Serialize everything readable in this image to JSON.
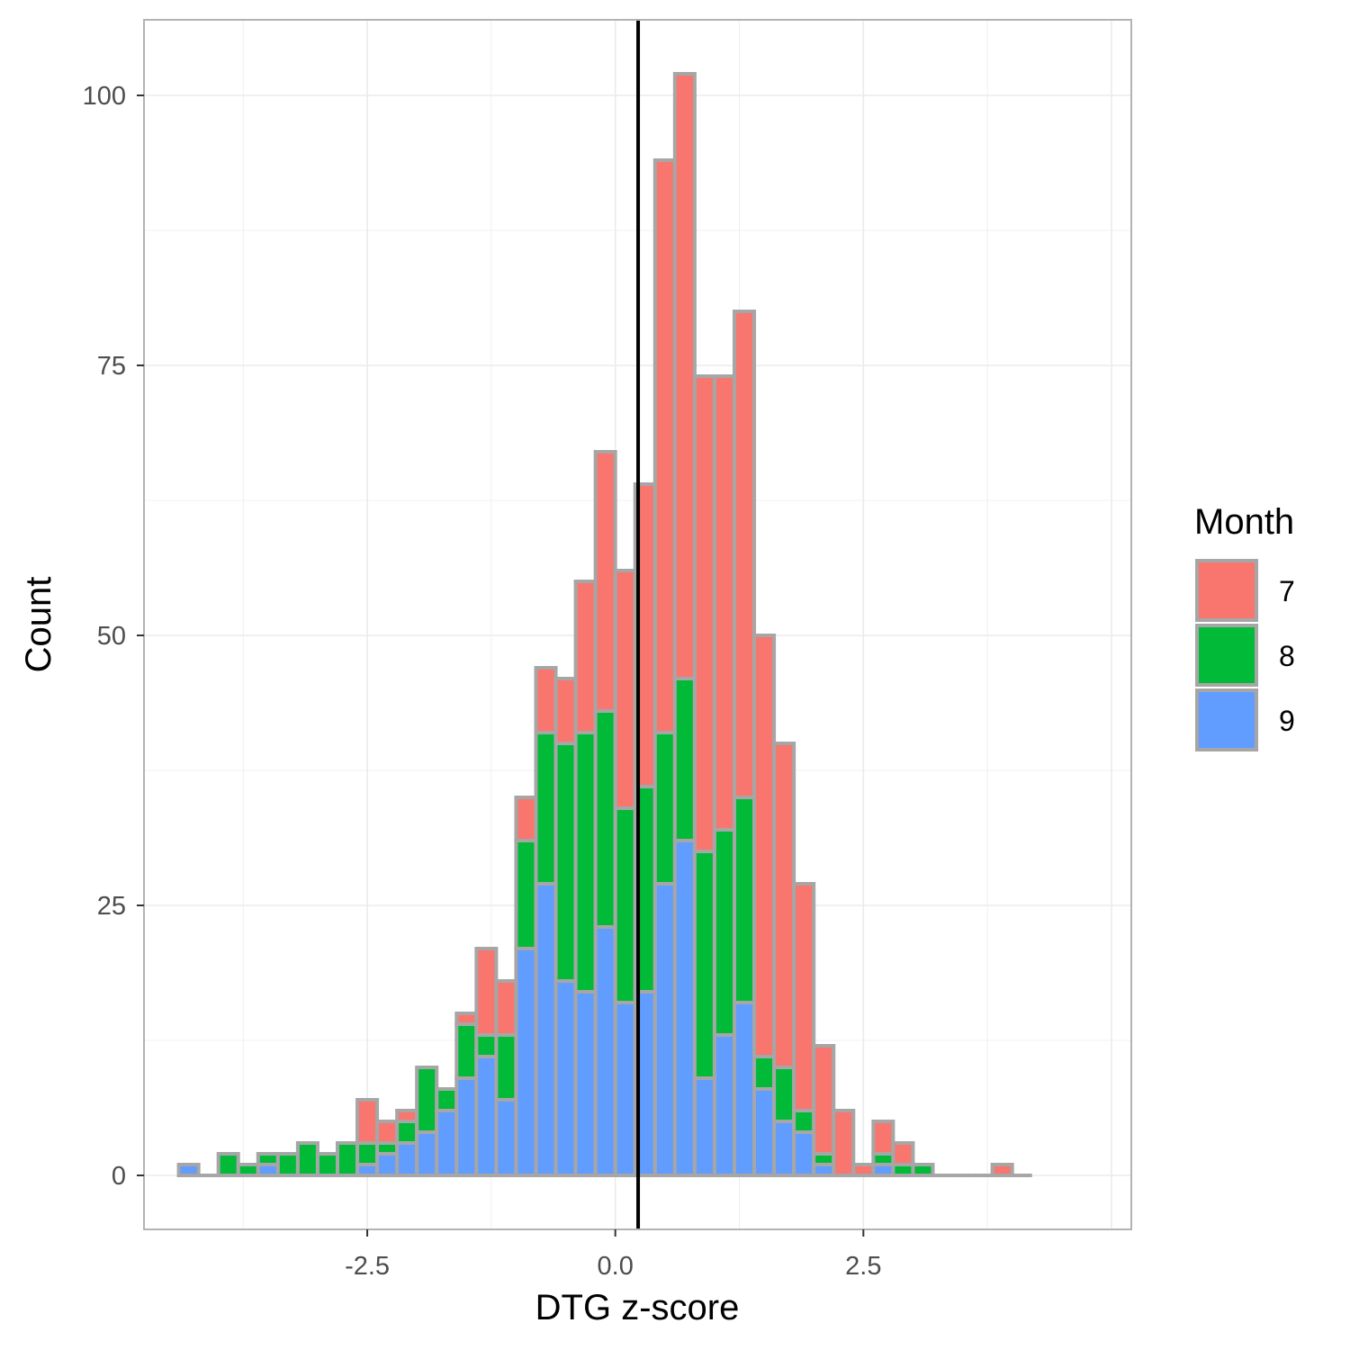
{
  "chart_data": {
    "type": "bar",
    "subtype": "stacked-histogram",
    "xlabel": "DTG z-score",
    "ylabel": "Count",
    "xlim": [
      -4.75,
      5.2
    ],
    "ylim": [
      -5,
      107
    ],
    "x_ticks": [
      -2.5,
      0.0,
      2.5
    ],
    "x_tick_labels": [
      "-2.5",
      "0.0",
      "2.5"
    ],
    "y_ticks": [
      0,
      25,
      50,
      75,
      100
    ],
    "y_tick_labels": [
      "0",
      "25",
      "50",
      "75",
      "100"
    ],
    "grid": true,
    "bin_width": 0.2,
    "bin_centers": [
      -4.3,
      -4.1,
      -3.9,
      -3.7,
      -3.5,
      -3.3,
      -3.1,
      -2.9,
      -2.7,
      -2.5,
      -2.3,
      -2.1,
      -1.9,
      -1.7,
      -1.5,
      -1.3,
      -1.1,
      -0.9,
      -0.7,
      -0.5,
      -0.3,
      -0.1,
      0.1,
      0.3,
      0.5,
      0.7,
      0.9,
      1.1,
      1.3,
      1.5,
      1.7,
      1.9,
      2.1,
      2.3,
      2.5,
      2.7,
      2.9,
      3.1,
      3.3,
      3.5,
      3.7,
      3.9,
      4.1
    ],
    "vline_x": 0.23,
    "legend_title": "Month",
    "legend_position": "right",
    "series": [
      {
        "name": "7",
        "color": "#F8766D",
        "values": [
          0,
          0,
          0,
          0,
          0,
          0,
          0,
          0,
          0,
          4,
          2,
          1,
          0,
          0,
          1,
          8,
          5,
          4,
          6,
          6,
          14,
          24,
          22,
          28,
          53,
          56,
          44,
          42,
          45,
          39,
          30,
          21,
          10,
          6,
          1,
          3,
          2,
          0,
          0,
          0,
          0,
          1,
          0
        ]
      },
      {
        "name": "8",
        "color": "#00BA38",
        "values": [
          0,
          0,
          2,
          1,
          1,
          2,
          3,
          2,
          3,
          2,
          1,
          2,
          6,
          2,
          5,
          2,
          6,
          10,
          14,
          22,
          24,
          20,
          18,
          19,
          14,
          15,
          21,
          19,
          19,
          3,
          5,
          2,
          1,
          0,
          0,
          1,
          1,
          1,
          0,
          0,
          0,
          0,
          0
        ]
      },
      {
        "name": "9",
        "color": "#619CFF",
        "values": [
          1,
          0,
          0,
          0,
          1,
          0,
          0,
          0,
          0,
          1,
          2,
          3,
          4,
          6,
          9,
          11,
          7,
          21,
          27,
          18,
          17,
          23,
          16,
          17,
          27,
          31,
          9,
          13,
          16,
          8,
          5,
          4,
          1,
          0,
          0,
          1,
          0,
          0,
          0,
          0,
          0,
          0,
          0
        ]
      }
    ]
  }
}
